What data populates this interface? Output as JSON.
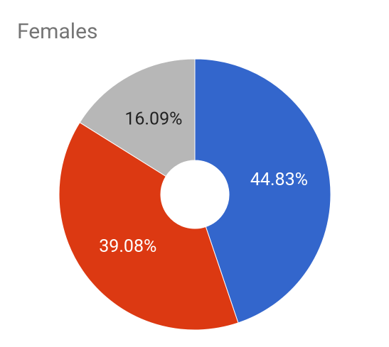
{
  "chart_data": {
    "type": "donut",
    "title": "Females",
    "values": [
      44.83,
      39.08,
      16.09
    ],
    "value_labels": [
      "44.83%",
      "39.08%",
      "16.09%"
    ],
    "colors": [
      "#3366cc",
      "#dc3912",
      "#b7b7b7"
    ]
  }
}
